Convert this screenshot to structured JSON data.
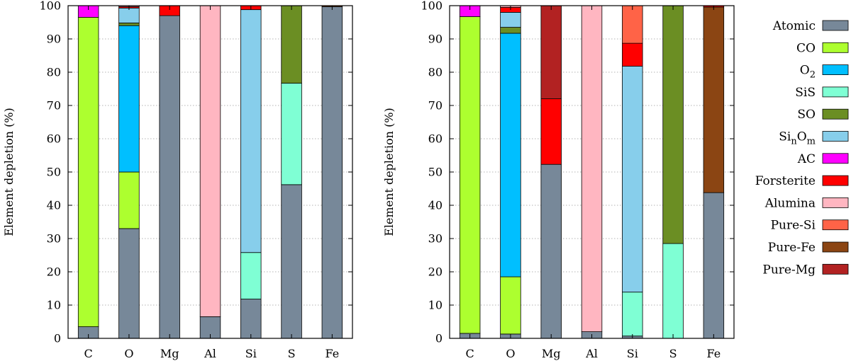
{
  "chart_data": {
    "type": "bar",
    "stacked": true,
    "ylabel": "Element depletion (%)",
    "ylim": [
      0,
      100
    ],
    "yticks": [
      0,
      10,
      20,
      30,
      40,
      50,
      60,
      70,
      80,
      90,
      100
    ],
    "categories": [
      "C",
      "O",
      "Mg",
      "Al",
      "Si",
      "S",
      "Fe"
    ],
    "legend": [
      {
        "name": "Atomic",
        "base": "Atomic",
        "sub": "",
        "base2": "",
        "sub2": "",
        "color": "#778899"
      },
      {
        "name": "CO",
        "base": "CO",
        "sub": "",
        "base2": "",
        "sub2": "",
        "color": "#adff2f"
      },
      {
        "name": "O2",
        "base": "O",
        "sub": "2",
        "base2": "",
        "sub2": "",
        "color": "#00bfff"
      },
      {
        "name": "SiS",
        "base": "SiS",
        "sub": "",
        "base2": "",
        "sub2": "",
        "color": "#7fffd4"
      },
      {
        "name": "SO",
        "base": "SO",
        "sub": "",
        "base2": "",
        "sub2": "",
        "color": "#6b8e23"
      },
      {
        "name": "SinOm",
        "base": "Si",
        "sub": "n",
        "base2": "O",
        "sub2": "m",
        "color": "#87ceeb"
      },
      {
        "name": "AC",
        "base": "AC",
        "sub": "",
        "base2": "",
        "sub2": "",
        "color": "#ff00ff"
      },
      {
        "name": "Forsterite",
        "base": "Forsterite",
        "sub": "",
        "base2": "",
        "sub2": "",
        "color": "#ff0000"
      },
      {
        "name": "Alumina",
        "base": "Alumina",
        "sub": "",
        "base2": "",
        "sub2": "",
        "color": "#ffb6c1"
      },
      {
        "name": "Pure-Si",
        "base": "Pure-Si",
        "sub": "",
        "base2": "",
        "sub2": "",
        "color": "#ff6347"
      },
      {
        "name": "Pure-Fe",
        "base": "Pure-Fe",
        "sub": "",
        "base2": "",
        "sub2": "",
        "color": "#8b4513"
      },
      {
        "name": "Pure-Mg",
        "base": "Pure-Mg",
        "sub": "",
        "base2": "",
        "sub2": "",
        "color": "#b22222"
      }
    ],
    "panels": [
      {
        "name": "left",
        "stacks": [
          {
            "category": "C",
            "segments": [
              [
                "Atomic",
                3.5
              ],
              [
                "CO",
                93.0
              ],
              [
                "AC",
                3.5
              ]
            ]
          },
          {
            "category": "O",
            "segments": [
              [
                "Atomic",
                33.0
              ],
              [
                "CO",
                17.0
              ],
              [
                "O2",
                44.0
              ],
              [
                "SO",
                0.8
              ],
              [
                "SinOm",
                4.5
              ],
              [
                "Forsterite",
                0.4
              ],
              [
                "Alumina",
                0.3
              ]
            ]
          },
          {
            "category": "Mg",
            "segments": [
              [
                "Atomic",
                97.0
              ],
              [
                "Forsterite",
                3.0
              ]
            ]
          },
          {
            "category": "Al",
            "segments": [
              [
                "Atomic",
                6.5
              ],
              [
                "Alumina",
                93.5
              ]
            ]
          },
          {
            "category": "Si",
            "segments": [
              [
                "Atomic",
                11.8
              ],
              [
                "SiS",
                14.0
              ],
              [
                "SinOm",
                73.0
              ],
              [
                "Forsterite",
                1.2
              ]
            ]
          },
          {
            "category": "S",
            "segments": [
              [
                "Atomic",
                46.2
              ],
              [
                "SiS",
                30.5
              ],
              [
                "SO",
                23.3
              ]
            ]
          },
          {
            "category": "Fe",
            "segments": [
              [
                "Atomic",
                99.7
              ],
              [
                "Pure-Fe",
                0.3
              ]
            ]
          }
        ]
      },
      {
        "name": "right",
        "stacks": [
          {
            "category": "C",
            "segments": [
              [
                "Atomic",
                1.5
              ],
              [
                "CO",
                95.2
              ],
              [
                "AC",
                3.3
              ]
            ]
          },
          {
            "category": "O",
            "segments": [
              [
                "Atomic",
                1.3
              ],
              [
                "CO",
                17.2
              ],
              [
                "O2",
                73.2
              ],
              [
                "SO",
                1.8
              ],
              [
                "SinOm",
                4.5
              ],
              [
                "Forsterite",
                1.5
              ],
              [
                "Alumina",
                0.5
              ]
            ]
          },
          {
            "category": "Mg",
            "segments": [
              [
                "Atomic",
                52.3
              ],
              [
                "Forsterite",
                19.7
              ],
              [
                "Pure-Mg",
                28.0
              ]
            ]
          },
          {
            "category": "Al",
            "segments": [
              [
                "Atomic",
                2.0
              ],
              [
                "Alumina",
                98.0
              ]
            ]
          },
          {
            "category": "Si",
            "segments": [
              [
                "Atomic",
                0.7
              ],
              [
                "SiS",
                13.2
              ],
              [
                "SinOm",
                67.9
              ],
              [
                "Forsterite",
                6.9
              ],
              [
                "Pure-Si",
                11.3
              ]
            ]
          },
          {
            "category": "S",
            "segments": [
              [
                "SiS",
                28.5
              ],
              [
                "SO",
                71.5
              ]
            ]
          },
          {
            "category": "Fe",
            "segments": [
              [
                "Atomic",
                43.8
              ],
              [
                "Pure-Fe",
                55.8
              ],
              [
                "Forsterite",
                0.4
              ]
            ]
          }
        ]
      }
    ]
  }
}
